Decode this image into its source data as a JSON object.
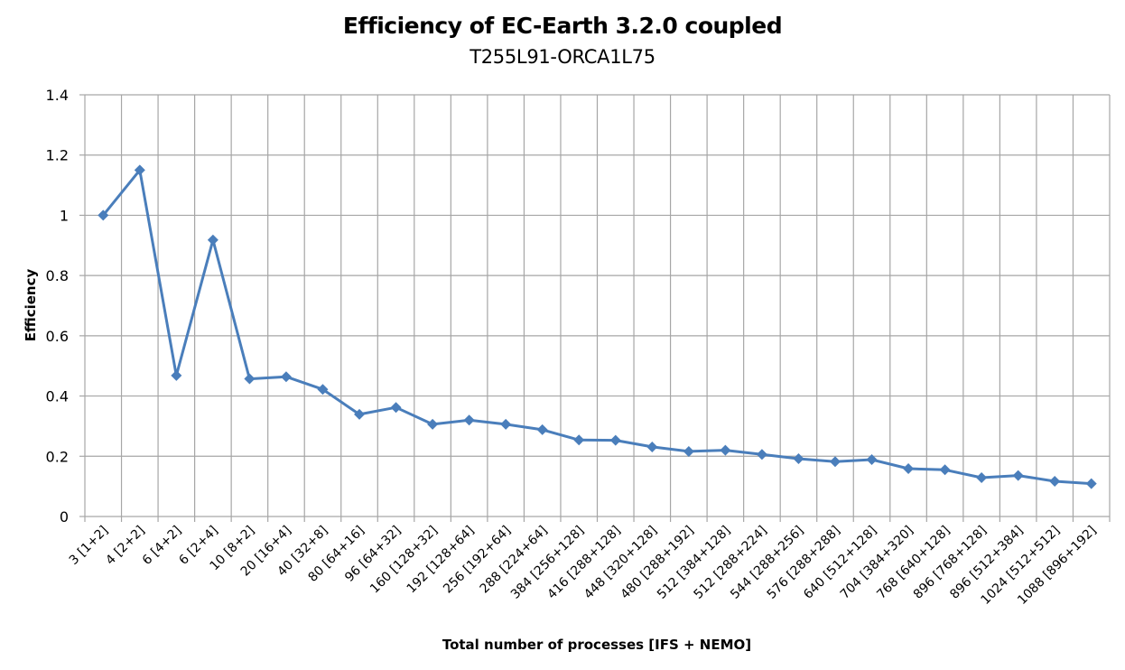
{
  "chart_data": {
    "type": "line",
    "title": "Efficiency of EC-Earth 3.2.0 coupled",
    "subtitle": "T255L91-ORCA1L75",
    "xlabel": "Total number of processes [IFS + NEMO]",
    "ylabel": "Efficiency",
    "ylim": [
      0,
      1.4
    ],
    "yticks": [
      0,
      0.2,
      0.4,
      0.6,
      0.8,
      1,
      1.2,
      1.4
    ],
    "ytick_labels": [
      "0",
      "0.2",
      "0.4",
      "0.6",
      "0.8",
      "1",
      "1.2",
      "1.4"
    ],
    "grid": true,
    "legend": "none",
    "marker": "diamond",
    "color": "#4a7ebb",
    "categories": [
      "3 [1+2]",
      "4 [2+2]",
      "6 [4+2]",
      "6 [2+4]",
      "10 [8+2]",
      "20 [16+4]",
      "40 [32+8]",
      "80 [64+16]",
      "96 [64+32]",
      "160 [128+32]",
      "192 [128+64]",
      "256 [192+64]",
      "288 [224+64]",
      "384 [256+128]",
      "416 [288+128]",
      "448 [320+128]",
      "480 [288+192]",
      "512 [384+128]",
      "512 [288+224]",
      "544 [288+256]",
      "576 [288+288]",
      "640 [512+128]",
      "704 [384+320]",
      "768 [640+128]",
      "896 [768+128]",
      "896 [512+384]",
      "1024 [512+512]",
      "1088 [896+192]"
    ],
    "series": [
      {
        "name": "Efficiency",
        "values": [
          1.0,
          1.15,
          0.468,
          0.918,
          0.457,
          0.464,
          0.422,
          0.339,
          0.362,
          0.306,
          0.32,
          0.306,
          0.288,
          0.254,
          0.253,
          0.231,
          0.216,
          0.22,
          0.206,
          0.192,
          0.182,
          0.189,
          0.159,
          0.155,
          0.129,
          0.136,
          0.117,
          0.109
        ]
      }
    ]
  }
}
